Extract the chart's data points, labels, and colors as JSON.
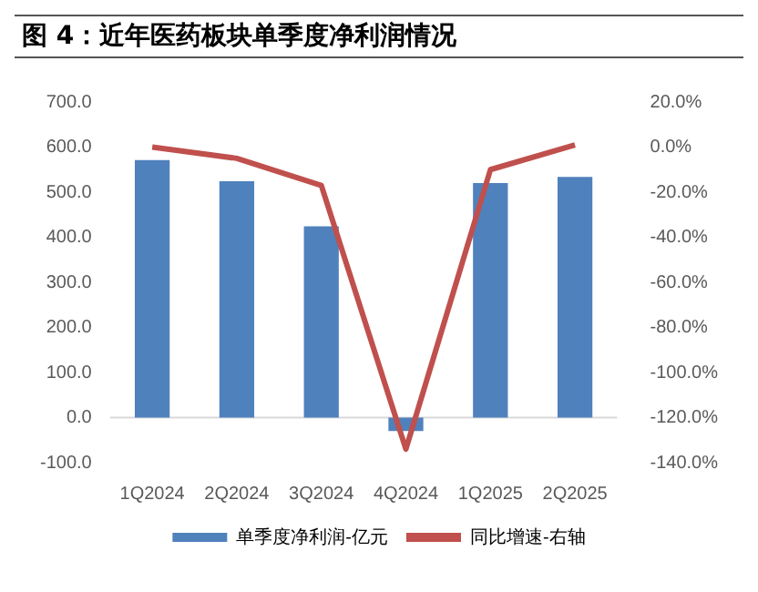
{
  "chart_data": {
    "type": "bar",
    "title": "图 4：近年医药板块单季度净利润情况",
    "categories": [
      "1Q2024",
      "2Q2024",
      "3Q2024",
      "4Q2024",
      "1Q2025",
      "2Q2025"
    ],
    "series": [
      {
        "name": "单季度净利润-亿元",
        "color": "#4f81bd",
        "values": [
          571,
          524,
          424,
          -30,
          520,
          534
        ]
      },
      {
        "name": "同比增速-右轴",
        "type": "line",
        "axis": "y2",
        "color": "#c0504d",
        "values": [
          0,
          -5,
          -17,
          -134,
          -10,
          1
        ]
      }
    ],
    "ylim": [
      -100,
      700
    ],
    "yticks": [
      {
        "value": -100,
        "label": "-100.0"
      },
      {
        "value": 0,
        "label": "0.0"
      },
      {
        "value": 100,
        "label": "100.0"
      },
      {
        "value": 200,
        "label": "200.0"
      },
      {
        "value": 300,
        "label": "300.0"
      },
      {
        "value": 400,
        "label": "400.0"
      },
      {
        "value": 500,
        "label": "500.0"
      },
      {
        "value": 600,
        "label": "600.0"
      },
      {
        "value": 700,
        "label": "700.0"
      }
    ],
    "y2lim": [
      -140,
      20
    ],
    "y2ticks": [
      {
        "value": -140,
        "label": "-140.0%"
      },
      {
        "value": -120,
        "label": "-120.0%"
      },
      {
        "value": -100,
        "label": "-100.0%"
      },
      {
        "value": -80,
        "label": "-80.0%"
      },
      {
        "value": -60,
        "label": "-60.0%"
      },
      {
        "value": -40,
        "label": "-40.0%"
      },
      {
        "value": -20,
        "label": "-20.0%"
      },
      {
        "value": 0,
        "label": "0.0%"
      },
      {
        "value": 20,
        "label": "20.0%"
      }
    ],
    "ref_lines": [
      {
        "axis": "y",
        "value": 0,
        "color": "#d9d9d9"
      }
    ],
    "grid": false,
    "legend": "bottom",
    "marker": "none"
  }
}
